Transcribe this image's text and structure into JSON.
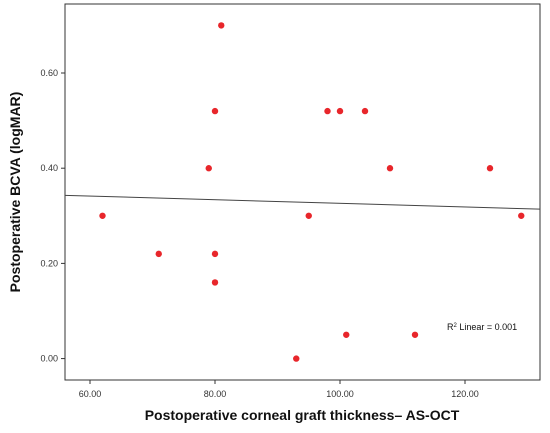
{
  "chart_data": {
    "type": "scatter",
    "xlabel": "Postoperative corneal graft thickness– AS-OCT",
    "ylabel": "Postoperative BCVA (logMAR)",
    "xlim": [
      56,
      132
    ],
    "ylim": [
      -0.045,
      0.745
    ],
    "x_ticks": [
      "60.00",
      "80.00",
      "100.00",
      "120.00"
    ],
    "x_tick_values": [
      60,
      80,
      100,
      120
    ],
    "y_ticks": [
      "0.00",
      "0.20",
      "0.40",
      "0.60"
    ],
    "y_tick_values": [
      0,
      0.2,
      0.4,
      0.6
    ],
    "points": [
      {
        "x": 62,
        "y": 0.3
      },
      {
        "x": 71,
        "y": 0.22
      },
      {
        "x": 79,
        "y": 0.4
      },
      {
        "x": 80,
        "y": 0.52
      },
      {
        "x": 80,
        "y": 0.22
      },
      {
        "x": 80,
        "y": 0.16
      },
      {
        "x": 81,
        "y": 0.7
      },
      {
        "x": 93,
        "y": 0.0
      },
      {
        "x": 95,
        "y": 0.3
      },
      {
        "x": 98,
        "y": 0.52
      },
      {
        "x": 100,
        "y": 0.52
      },
      {
        "x": 101,
        "y": 0.05
      },
      {
        "x": 104,
        "y": 0.52
      },
      {
        "x": 108,
        "y": 0.4
      },
      {
        "x": 112,
        "y": 0.05
      },
      {
        "x": 124,
        "y": 0.4
      },
      {
        "x": 129,
        "y": 0.3
      }
    ],
    "fit_line": {
      "x": [
        56,
        132
      ],
      "y": [
        0.343,
        0.314
      ]
    },
    "annotation": {
      "prefix": "R",
      "sup": "2",
      "text": " Linear = 0.001"
    },
    "grid": false,
    "colors": {
      "point": "#e8262b",
      "line": "#444444",
      "axis": "#333333"
    }
  }
}
